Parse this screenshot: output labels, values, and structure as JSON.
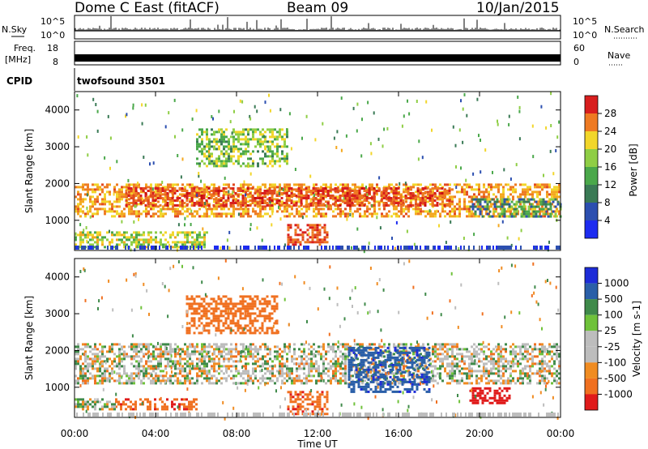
{
  "header": {
    "title": "Dome C East (fitACF)",
    "beam": "Beam 09",
    "date": "10/Jan/2015"
  },
  "strips": {
    "nsky_label": "N.Sky",
    "nsky_ticks": [
      "10^5",
      "10^0"
    ],
    "nsearch_label": "N.Search",
    "freq_label_1": "Freq.",
    "freq_label_2": "[MHz]",
    "freq_ticks": [
      "18",
      "8"
    ],
    "nave_ticks": [
      "60",
      "0"
    ],
    "nave_label": "Nave",
    "cpid_label": "CPID",
    "cpid_value": "twofsound 3501",
    "noise_right_ticks": [
      "10^5",
      "10^0"
    ]
  },
  "axes": {
    "ylabel": "Slant Range [km]",
    "xlabel": "Time UT",
    "y_ticks": [
      "1000",
      "2000",
      "3000",
      "4000"
    ],
    "x_ticks": [
      "00:00",
      "04:00",
      "08:00",
      "12:00",
      "16:00",
      "20:00",
      "00:00"
    ]
  },
  "power_scale": {
    "label": "Power [dB]",
    "ticks": [
      "4",
      "8",
      "12",
      "16",
      "20",
      "24",
      "28"
    ],
    "colors": [
      "#1d2cf0",
      "#2c4fb0",
      "#3a7a55",
      "#4aa84a",
      "#8fce45",
      "#f2d62a",
      "#f4a81e",
      "#ee7a22",
      "#e24a20",
      "#d81e1e",
      "#c80e0e"
    ]
  },
  "velocity_scale": {
    "label": "Velocity [m s-1]",
    "ticks": [
      "1000",
      "500",
      "100",
      "25",
      "-25",
      "-100",
      "-500",
      "-1000"
    ],
    "colors": [
      "#1d2cd8",
      "#2a5fa8",
      "#3f8a4a",
      "#6fc23a",
      "#bdbdbd",
      "#f08c22",
      "#f07020",
      "#e01b1b"
    ]
  },
  "chart_data": [
    {
      "type": "heatmap",
      "title": "Power",
      "xlabel": "Time UT",
      "ylabel": "Slant Range [km]",
      "xlim": [
        "00:00",
        "24:00"
      ],
      "ylim": [
        180,
        4500
      ],
      "colorbar": {
        "label": "Power [dB]",
        "range": [
          0,
          32
        ],
        "ticks": [
          4,
          8,
          12,
          16,
          20,
          24,
          28
        ]
      },
      "echo_regions": [
        {
          "t_start_h": 0.0,
          "t_end_h": 24.0,
          "range_km": [
            1100,
            2000
          ],
          "power_db": 20
        },
        {
          "t_start_h": 2.5,
          "t_end_h": 18.5,
          "range_km": [
            1400,
            1900
          ],
          "power_db": 26
        },
        {
          "t_start_h": 0.0,
          "t_end_h": 6.5,
          "range_km": [
            300,
            700
          ],
          "power_db": 14
        },
        {
          "t_start_h": 10.5,
          "t_end_h": 12.5,
          "range_km": [
            350,
            900
          ],
          "power_db": 26
        },
        {
          "t_start_h": 6.0,
          "t_end_h": 10.5,
          "range_km": [
            2500,
            3500
          ],
          "power_db": 12
        },
        {
          "t_start_h": 19.5,
          "t_end_h": 24.0,
          "range_km": [
            1100,
            1600
          ],
          "power_db": 8
        }
      ]
    },
    {
      "type": "heatmap",
      "title": "Velocity",
      "xlabel": "Time UT",
      "ylabel": "Slant Range [km]",
      "xlim": [
        "00:00",
        "24:00"
      ],
      "ylim": [
        180,
        4500
      ],
      "colorbar": {
        "label": "Velocity [m s-1]",
        "range": [
          -1000,
          1000
        ],
        "ticks": [
          1000,
          500,
          100,
          25,
          -25,
          -100,
          -500,
          -1000
        ]
      },
      "echo_regions": [
        {
          "t_start_h": 0.0,
          "t_end_h": 24.0,
          "range_km": [
            1100,
            2200
          ],
          "velocity_ms": 0
        },
        {
          "t_start_h": 13.5,
          "t_end_h": 17.5,
          "range_km": [
            900,
            2100
          ],
          "velocity_ms": 600
        },
        {
          "t_start_h": 5.5,
          "t_end_h": 10.0,
          "range_km": [
            2500,
            3500
          ],
          "velocity_ms": -300
        },
        {
          "t_start_h": 2.0,
          "t_end_h": 6.0,
          "range_km": [
            400,
            700
          ],
          "velocity_ms": -400
        },
        {
          "t_start_h": 10.5,
          "t_end_h": 12.5,
          "range_km": [
            300,
            900
          ],
          "velocity_ms": -400
        },
        {
          "t_start_h": 19.5,
          "t_end_h": 21.5,
          "range_km": [
            600,
            1000
          ],
          "velocity_ms": -800
        },
        {
          "t_start_h": 0.0,
          "t_end_h": 2.0,
          "range_km": [
            400,
            700
          ],
          "velocity_ms": 50
        }
      ]
    }
  ]
}
